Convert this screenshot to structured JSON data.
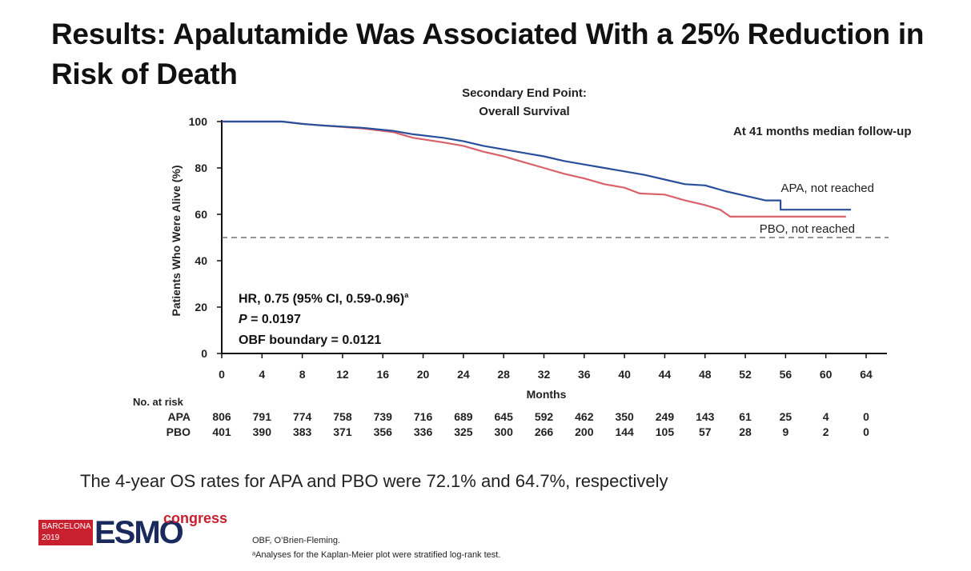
{
  "slide": {
    "title": "Results: Apalutamide Was Associated With a 25% Reduction in Risk of Death",
    "chart_subtitle_1": "Secondary End Point:",
    "chart_subtitle_2": "Overall Survival",
    "followup_note": "At 41 months median follow-up",
    "hr_line": "HR, 0.75 (95% CI, 0.59-0.96)",
    "hr_sup": "a",
    "p_label": "P",
    "p_value": " = 0.0197",
    "obf_line": "OBF boundary = 0.0121",
    "risk_header": "No. at risk",
    "summary": "The 4-year OS rates for APA and PBO were 72.1% and 64.7%, respectively",
    "footnote_1": "OBF, O’Brien-Fleming.",
    "footnote_2": "ᵃAnalyses for the Kaplan-Meier plot were stratified log-rank test.",
    "logo": {
      "city": "BARCELONA",
      "year": "2019",
      "brand": "ESMO",
      "suffix": "congress"
    }
  },
  "chart_data": {
    "type": "line",
    "title": "Secondary End Point: Overall Survival",
    "xlabel": "Months",
    "ylabel": "Patients Who Were Alive (%)",
    "xlim": [
      0,
      64
    ],
    "ylim": [
      0,
      100
    ],
    "xticks": [
      0,
      4,
      8,
      12,
      16,
      20,
      24,
      28,
      32,
      36,
      40,
      44,
      48,
      52,
      56,
      60,
      64
    ],
    "yticks": [
      0,
      20,
      40,
      60,
      80,
      100
    ],
    "reference_line": {
      "y": 50,
      "style": "dashed"
    },
    "series": [
      {
        "name": "APA, not reached",
        "color": "#2a4f9a",
        "points": [
          [
            0,
            100
          ],
          [
            6,
            100
          ],
          [
            8,
            99
          ],
          [
            10,
            98.3
          ],
          [
            14,
            97.3
          ],
          [
            17,
            96
          ],
          [
            19,
            94.5
          ],
          [
            22,
            93
          ],
          [
            24,
            91.5
          ],
          [
            26,
            89.5
          ],
          [
            28,
            88
          ],
          [
            30,
            86.5
          ],
          [
            32,
            85
          ],
          [
            34,
            83
          ],
          [
            36,
            81.5
          ],
          [
            38,
            80
          ],
          [
            40,
            78.5
          ],
          [
            42,
            77
          ],
          [
            44,
            75
          ],
          [
            46,
            73
          ],
          [
            48,
            72.5
          ],
          [
            50,
            70
          ],
          [
            52,
            68
          ],
          [
            54,
            66
          ],
          [
            55.5,
            66
          ],
          [
            55.5,
            62
          ],
          [
            58,
            62
          ],
          [
            60,
            62
          ],
          [
            62.5,
            62
          ]
        ]
      },
      {
        "name": "PBO, not reached",
        "color": "#d9626a",
        "points": [
          [
            0,
            100
          ],
          [
            6,
            100
          ],
          [
            8,
            99
          ],
          [
            10,
            98.3
          ],
          [
            14,
            97
          ],
          [
            17,
            95.5
          ],
          [
            19,
            93
          ],
          [
            22,
            91
          ],
          [
            24,
            89.5
          ],
          [
            26,
            87
          ],
          [
            28,
            85
          ],
          [
            30,
            82.5
          ],
          [
            32,
            80
          ],
          [
            34,
            77.5
          ],
          [
            36,
            75.5
          ],
          [
            38,
            73
          ],
          [
            40,
            71.5
          ],
          [
            41.5,
            69
          ],
          [
            44,
            68.5
          ],
          [
            46,
            66
          ],
          [
            48,
            64
          ],
          [
            49.5,
            62
          ],
          [
            50.5,
            59
          ],
          [
            54,
            59
          ],
          [
            58,
            59
          ],
          [
            60,
            59
          ],
          [
            62,
            59
          ]
        ]
      }
    ],
    "risk_table": {
      "months": [
        0,
        4,
        8,
        12,
        16,
        20,
        24,
        28,
        32,
        36,
        40,
        44,
        48,
        52,
        56,
        60,
        64
      ],
      "rows": [
        {
          "name": "APA",
          "values": [
            806,
            791,
            774,
            758,
            739,
            716,
            689,
            645,
            592,
            462,
            350,
            249,
            143,
            61,
            25,
            4,
            0
          ]
        },
        {
          "name": "PBO",
          "values": [
            401,
            390,
            383,
            371,
            356,
            336,
            325,
            300,
            266,
            200,
            144,
            105,
            57,
            28,
            9,
            2,
            0
          ]
        }
      ]
    }
  }
}
